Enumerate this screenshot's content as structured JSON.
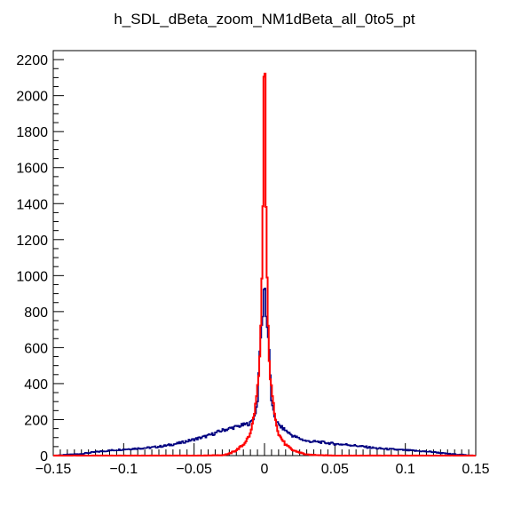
{
  "chart_data": {
    "type": "histogram",
    "title": "h_SDL_dBeta_zoom_NM1dBeta_all_0to5_pt",
    "xlabel": "",
    "ylabel": "",
    "xlim": [
      -0.15,
      0.15
    ],
    "ylim": [
      0,
      2250
    ],
    "x_ticks": [
      "−0.15",
      "−0.1",
      "−0.05",
      "0",
      "0.05",
      "0.1",
      "0.15"
    ],
    "x_tick_values": [
      -0.15,
      -0.1,
      -0.05,
      0,
      0.05,
      0.1,
      0.15
    ],
    "y_ticks": [
      "0",
      "200",
      "400",
      "600",
      "800",
      "1000",
      "1200",
      "1400",
      "1600",
      "1800",
      "2000",
      "2200"
    ],
    "y_tick_values": [
      0,
      200,
      400,
      600,
      800,
      1000,
      1200,
      1400,
      1600,
      1800,
      2000,
      2200
    ],
    "grid": false,
    "legend": "none",
    "series": [
      {
        "color": "#000080",
        "x": [
          -0.15,
          -0.14,
          -0.13,
          -0.12,
          -0.11,
          -0.1,
          -0.09,
          -0.08,
          -0.07,
          -0.06,
          -0.05,
          -0.04,
          -0.03,
          -0.025,
          -0.02,
          -0.015,
          -0.01,
          -0.007,
          -0.005,
          -0.003,
          -0.002,
          -0.001,
          0.0,
          0.001,
          0.002,
          0.003,
          0.005,
          0.007,
          0.01,
          0.015,
          0.02,
          0.025,
          0.03,
          0.04,
          0.05,
          0.06,
          0.07,
          0.08,
          0.09,
          0.1,
          0.11,
          0.12,
          0.13,
          0.14,
          0.15
        ],
        "values": [
          0,
          5,
          10,
          20,
          28,
          35,
          40,
          45,
          55,
          70,
          90,
          110,
          140,
          150,
          160,
          170,
          180,
          220,
          290,
          640,
          700,
          800,
          1000,
          800,
          700,
          640,
          290,
          220,
          170,
          140,
          110,
          95,
          80,
          75,
          65,
          60,
          50,
          40,
          35,
          30,
          25,
          20,
          10,
          5,
          0
        ]
      },
      {
        "color": "#ff0000",
        "x": [
          -0.15,
          -0.05,
          -0.03,
          -0.025,
          -0.02,
          -0.015,
          -0.01,
          -0.008,
          -0.006,
          -0.004,
          -0.003,
          -0.002,
          -0.001,
          -0.0005,
          0.0,
          0.0005,
          0.001,
          0.002,
          0.003,
          0.004,
          0.006,
          0.008,
          0.01,
          0.015,
          0.02,
          0.03,
          0.05,
          0.15
        ],
        "values": [
          0,
          0,
          2,
          10,
          30,
          60,
          120,
          200,
          300,
          440,
          600,
          900,
          1450,
          2100,
          2150,
          2100,
          1450,
          900,
          600,
          440,
          300,
          200,
          120,
          60,
          30,
          5,
          0,
          0
        ]
      }
    ]
  }
}
